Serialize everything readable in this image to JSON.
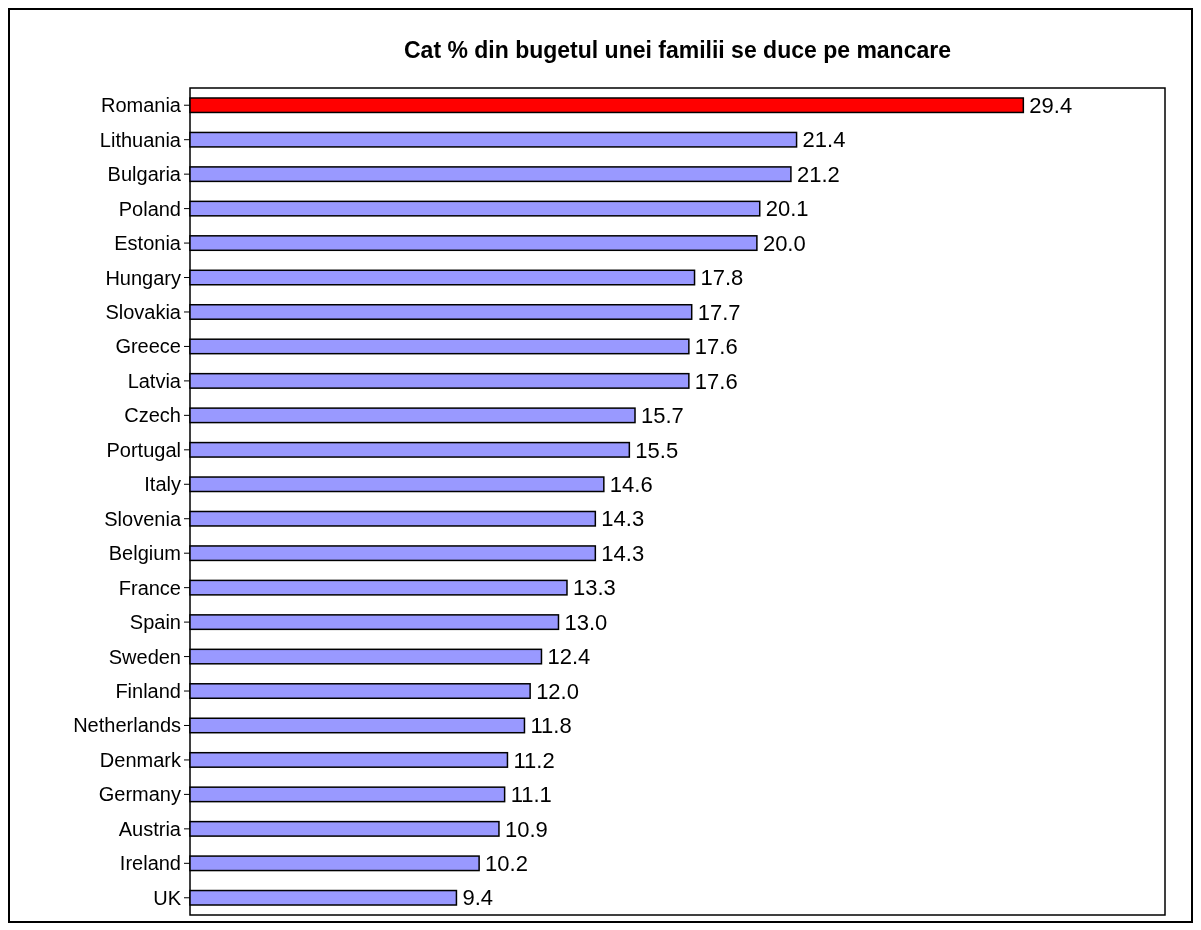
{
  "chart_data": {
    "type": "bar",
    "orientation": "horizontal",
    "title": "Cat % din bugetul unei familii se duce pe mancare",
    "categories": [
      "Romania",
      "Lithuania",
      "Bulgaria",
      "Poland",
      "Estonia",
      "Hungary",
      "Slovakia",
      "Greece",
      "Latvia",
      "Czech",
      "Portugal",
      "Italy",
      "Slovenia",
      "Belgium",
      "France",
      "Spain",
      "Sweden",
      "Finland",
      "Netherlands",
      "Denmark",
      "Germany",
      "Austria",
      "Ireland",
      "UK"
    ],
    "values": [
      29.4,
      21.4,
      21.2,
      20.1,
      20.0,
      17.8,
      17.7,
      17.6,
      17.6,
      15.7,
      15.5,
      14.6,
      14.3,
      14.3,
      13.3,
      13.0,
      12.4,
      12.0,
      11.8,
      11.2,
      11.1,
      10.9,
      10.2,
      9.4
    ],
    "colors": [
      "#ff0000",
      "#9999ff",
      "#9999ff",
      "#9999ff",
      "#9999ff",
      "#9999ff",
      "#9999ff",
      "#9999ff",
      "#9999ff",
      "#9999ff",
      "#9999ff",
      "#9999ff",
      "#9999ff",
      "#9999ff",
      "#9999ff",
      "#9999ff",
      "#9999ff",
      "#9999ff",
      "#9999ff",
      "#9999ff",
      "#9999ff",
      "#9999ff",
      "#9999ff",
      "#9999ff"
    ],
    "value_labels": [
      "29.4",
      "21.4",
      "21.2",
      "20.1",
      "20.0",
      "17.8",
      "17.7",
      "17.6",
      "17.6",
      "15.7",
      "15.5",
      "14.6",
      "14.3",
      "14.3",
      "13.3",
      "13.0",
      "12.4",
      "12.0",
      "11.8",
      "11.2",
      "11.1",
      "10.9",
      "10.2",
      "9.4"
    ]
  }
}
